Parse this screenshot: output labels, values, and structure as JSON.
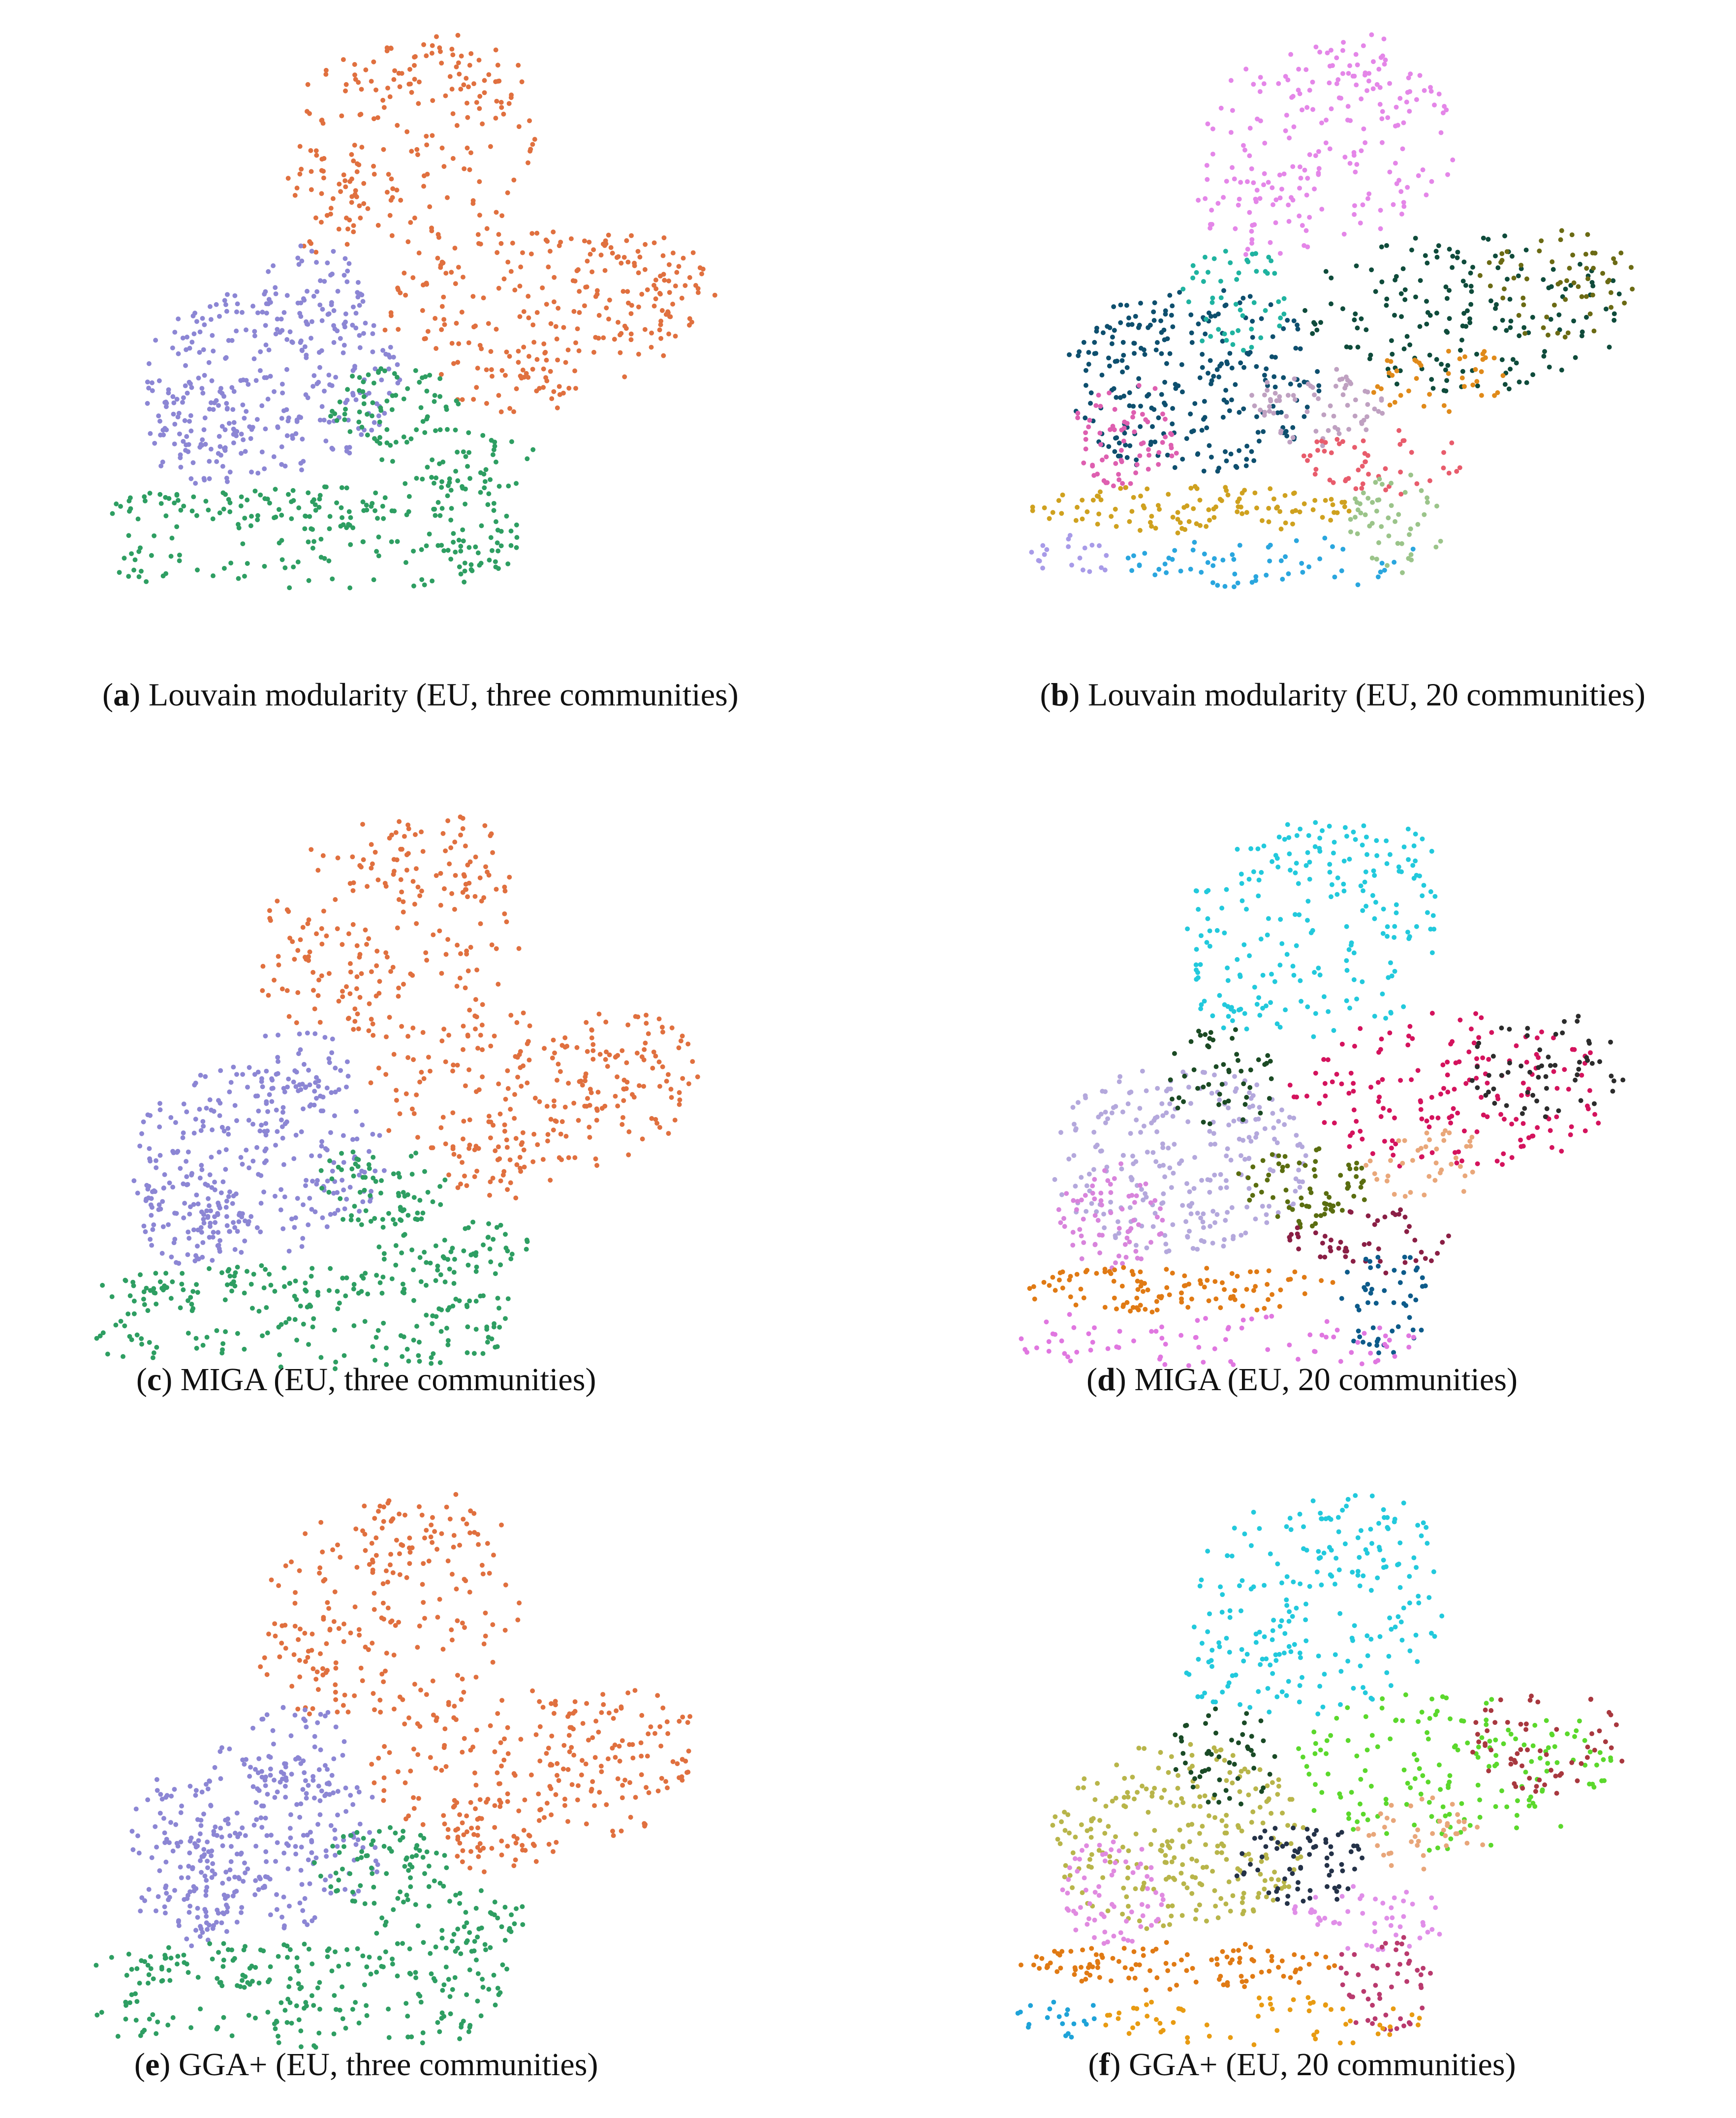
{
  "panels": [
    {
      "caption": [
        "(",
        "a",
        ") Louvain modularity (EU, three communities)"
      ]
    },
    {
      "caption": [
        "(",
        "b",
        ") Louvain modularity (EU, 20 communities)"
      ]
    },
    {
      "caption": [
        "(",
        "c",
        ") MIGA (EU, three communities)"
      ]
    },
    {
      "caption": [
        "(",
        "d",
        ") MIGA (EU, 20 communities)"
      ]
    },
    {
      "caption": [
        "(",
        "e",
        ") GGA+ (EU, three communities)"
      ]
    },
    {
      "caption": [
        "(",
        "f",
        ") GGA+ (EU, 20 communities)"
      ]
    }
  ]
}
